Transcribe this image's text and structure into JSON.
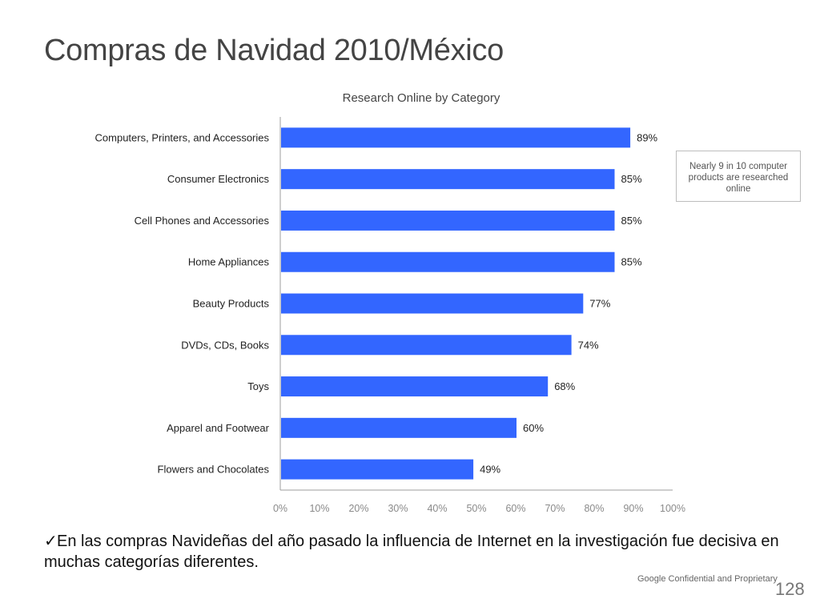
{
  "slide": {
    "title": "Compras de Navidad 2010/México",
    "callout": "Nearly 9 in 10 computer products are researched online",
    "bullet_check": "✓",
    "bullet_text": "En las compras Navideñas del año pasado la influencia de Internet en la investigación fue decisiva en muchas categorías diferentes.",
    "footer": "Google Confidential and Proprietary",
    "page_number": "128"
  },
  "chart_data": {
    "type": "bar",
    "orientation": "horizontal",
    "title": "Research Online by Category",
    "categories": [
      "Computers, Printers, and Accessories",
      "Consumer Electronics",
      "Cell Phones and Accessories",
      "Home Appliances",
      "Beauty Products",
      "DVDs, CDs, Books",
      "Toys",
      "Apparel and Footwear",
      "Flowers and Chocolates"
    ],
    "values": [
      89,
      85,
      85,
      85,
      77,
      74,
      68,
      60,
      49
    ],
    "value_labels": [
      "89%",
      "85%",
      "85%",
      "85%",
      "77%",
      "74%",
      "68%",
      "60%",
      "49%"
    ],
    "xlim": [
      0,
      100
    ],
    "x_ticks": [
      "0%",
      "10%",
      "20%",
      "30%",
      "40%",
      "50%",
      "60%",
      "70%",
      "80%",
      "90%",
      "100%"
    ],
    "bar_color": "#3366ff",
    "grid": false,
    "legend": "none"
  }
}
